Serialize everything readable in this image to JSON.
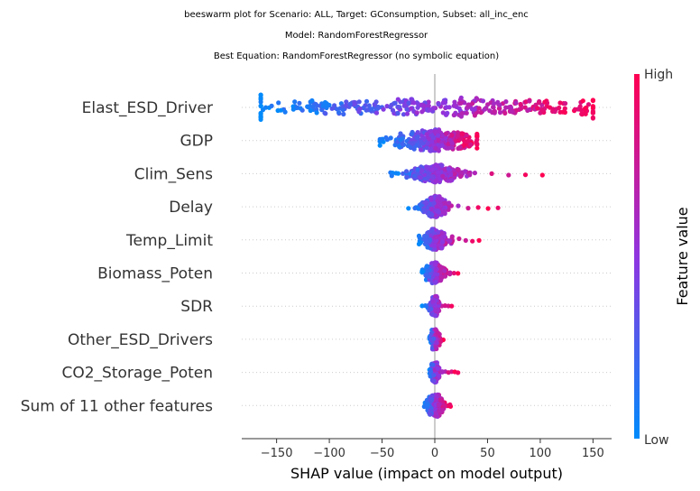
{
  "chart_data": {
    "type": "scatter",
    "subtype": "shap-beeswarm",
    "title_lines": [
      "beeswarm plot for Scenario: ALL, Target: GConsumption, Subset: all_inc_enc",
      "Model: RandomForestRegressor",
      "Best Equation: RandomForestRegressor (no symbolic equation)"
    ],
    "xlabel": "SHAP value (impact on model output)",
    "colorbar_label": "Feature value",
    "colorbar_high": "High",
    "colorbar_low": "Low",
    "colors": {
      "low": "#008bfb",
      "mid": "#8f35e0",
      "high": "#ff0052",
      "axis": "#333333",
      "zero_line": "#999999"
    },
    "xlim": [
      -180,
      165
    ],
    "xticks": [
      -150,
      -100,
      -50,
      0,
      50,
      100,
      150
    ],
    "xtick_labels": [
      "−150",
      "−100",
      "−50",
      "0",
      "50",
      "100",
      "150"
    ],
    "features": [
      {
        "name": "Elast_ESD_Driver",
        "min": -165,
        "max": 150,
        "spread": 95,
        "n": 340,
        "width": 14
      },
      {
        "name": "GDP",
        "min": -52,
        "max": 40,
        "spread": 22,
        "n": 300,
        "width": 12
      },
      {
        "name": "Clim_Sens",
        "min": -42,
        "max": 102,
        "spread": 14,
        "n": 300,
        "width": 10
      },
      {
        "name": "Delay",
        "min": -25,
        "max": 60,
        "spread": 6,
        "n": 240,
        "width": 12
      },
      {
        "name": "Temp_Limit",
        "min": -15,
        "max": 42,
        "spread": 6,
        "n": 240,
        "width": 12
      },
      {
        "name": "Biomass_Poten",
        "min": -12,
        "max": 22,
        "spread": 5,
        "n": 240,
        "width": 12
      },
      {
        "name": "SDR",
        "min": -12,
        "max": 16,
        "spread": 2,
        "n": 200,
        "width": 11
      },
      {
        "name": "Other_ESD_Drivers",
        "min": -5,
        "max": 8,
        "spread": 2,
        "n": 200,
        "width": 11
      },
      {
        "name": "CO2_Storage_Poten",
        "min": -5,
        "max": 22,
        "spread": 2,
        "n": 200,
        "width": 11
      },
      {
        "name": "Sum of 11 other features",
        "min": -10,
        "max": 15,
        "spread": 4,
        "n": 240,
        "width": 12
      }
    ]
  }
}
